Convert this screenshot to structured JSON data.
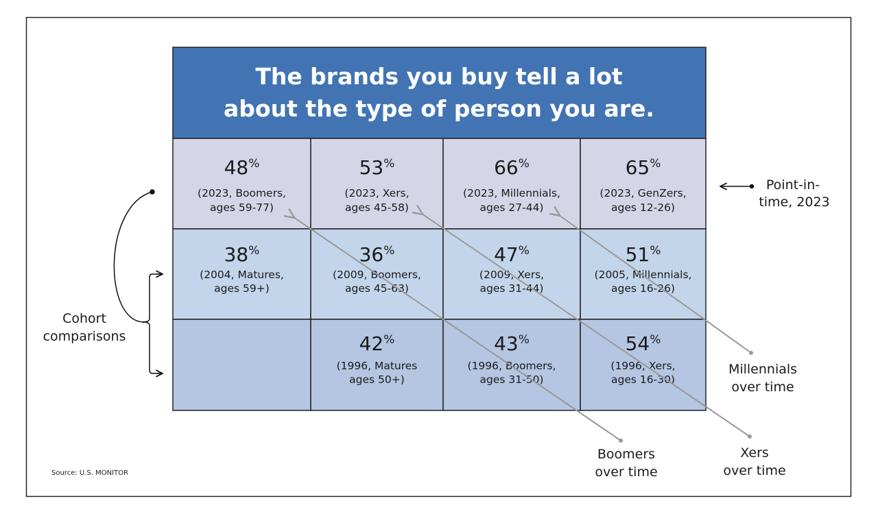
{
  "header": {
    "title": [
      "The brands you buy tell a lot",
      "about the type of person you are."
    ]
  },
  "table": {
    "rows": [
      [
        {
          "value": "48",
          "unit": "%",
          "note": [
            "(2023, Boomers,",
            "ages 59-77)"
          ]
        },
        {
          "value": "53",
          "unit": "%",
          "note": [
            "(2023, Xers,",
            "ages 45-58)"
          ]
        },
        {
          "value": "66",
          "unit": "%",
          "note": [
            "(2023, Millennials,",
            "ages 27-44)"
          ]
        },
        {
          "value": "65",
          "unit": "%",
          "note": [
            "(2023, GenZers,",
            "ages 12-26)"
          ]
        }
      ],
      [
        {
          "value": "38",
          "unit": "%",
          "note": [
            "(2004, Matures,",
            "ages 59+)"
          ]
        },
        {
          "value": "36",
          "unit": "%",
          "note": [
            "(2009, Boomers,",
            "ages 45-63)"
          ]
        },
        {
          "value": "47",
          "unit": "%",
          "note": [
            "(2009, Xers,",
            "ages 31-44)"
          ]
        },
        {
          "value": "51",
          "unit": "%",
          "note": [
            "(2005, Millennials,",
            "ages 16-26)"
          ]
        }
      ],
      [
        null,
        {
          "value": "42",
          "unit": "%",
          "note": [
            "(1996, Matures",
            "ages 50+)"
          ]
        },
        {
          "value": "43",
          "unit": "%",
          "note": [
            "(1996, Boomers,",
            "ages 31-50)"
          ]
        },
        {
          "value": "54",
          "unit": "%",
          "note": [
            "(1996, Xers,",
            "ages 16-30)"
          ]
        }
      ]
    ]
  },
  "annotations": {
    "point_in_time": [
      "Point-in-",
      "time, 2023"
    ],
    "cohort": [
      "Cohort",
      "comparisons"
    ],
    "millennials": [
      "Millennials",
      "over time"
    ],
    "boomers": [
      "Boomers",
      "over time"
    ],
    "xers": [
      "Xers",
      "over time"
    ]
  },
  "source": "Source: U.S. MONITOR"
}
